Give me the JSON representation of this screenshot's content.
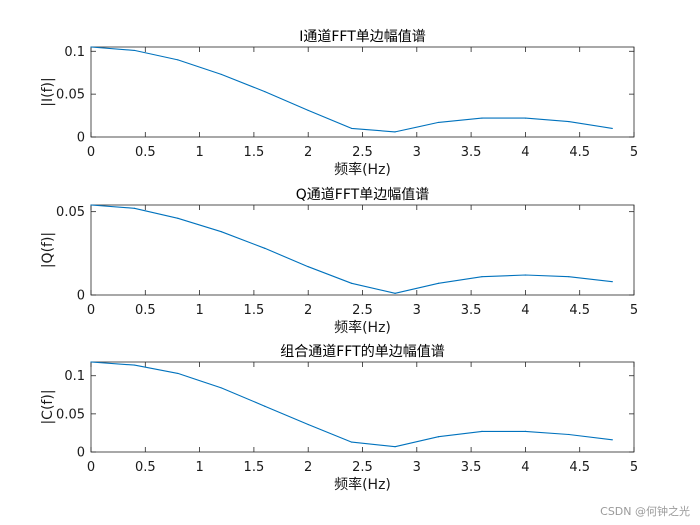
{
  "colors": {
    "line": "#0072BD",
    "axis": "#262626",
    "background": "#ffffff"
  },
  "watermark": "CSDN @何钟之光",
  "chart_data": [
    {
      "type": "line",
      "title": "I通道FFT单边幅值谱",
      "xlabel": "频率(Hz)",
      "ylabel": "|I(f)|",
      "xlim": [
        0,
        5
      ],
      "ylim": [
        0,
        0.105
      ],
      "xticks": [
        "0",
        "0.5",
        "1",
        "1.5",
        "2",
        "2.5",
        "3",
        "3.5",
        "4",
        "4.5",
        "5"
      ],
      "yticks": [
        {
          "v": 0,
          "label": "0"
        },
        {
          "v": 0.05,
          "label": "0.05"
        },
        {
          "v": 0.1,
          "label": "0.1"
        }
      ],
      "grid": false,
      "x": [
        0,
        0.4,
        0.8,
        1.2,
        1.6,
        2.0,
        2.4,
        2.8,
        3.2,
        3.6,
        4.0,
        4.4,
        4.8
      ],
      "y": [
        0.105,
        0.101,
        0.09,
        0.073,
        0.053,
        0.031,
        0.01,
        0.006,
        0.017,
        0.022,
        0.022,
        0.018,
        0.01
      ]
    },
    {
      "type": "line",
      "title": "Q通道FFT单边幅值谱",
      "xlabel": "频率(Hz)",
      "ylabel": "|Q(f)|",
      "xlim": [
        0,
        5
      ],
      "ylim": [
        0,
        0.054
      ],
      "xticks": [
        "0",
        "0.5",
        "1",
        "1.5",
        "2",
        "2.5",
        "3",
        "3.5",
        "4",
        "4.5",
        "5"
      ],
      "yticks": [
        {
          "v": 0,
          "label": "0"
        },
        {
          "v": 0.05,
          "label": "0.05"
        }
      ],
      "grid": false,
      "x": [
        0,
        0.4,
        0.8,
        1.2,
        1.6,
        2.0,
        2.4,
        2.8,
        3.2,
        3.6,
        4.0,
        4.4,
        4.8
      ],
      "y": [
        0.054,
        0.052,
        0.046,
        0.038,
        0.028,
        0.017,
        0.007,
        0.001,
        0.007,
        0.011,
        0.012,
        0.011,
        0.008
      ]
    },
    {
      "type": "line",
      "title": "组合通道FFT的单边幅值谱",
      "xlabel": "频率(Hz)",
      "ylabel": "|C(f)|",
      "xlim": [
        0,
        5
      ],
      "ylim": [
        0,
        0.118
      ],
      "xticks": [
        "0",
        "0.5",
        "1",
        "1.5",
        "2",
        "2.5",
        "3",
        "3.5",
        "4",
        "4.5",
        "5"
      ],
      "yticks": [
        {
          "v": 0,
          "label": "0"
        },
        {
          "v": 0.05,
          "label": "0.05"
        },
        {
          "v": 0.1,
          "label": "0.1"
        }
      ],
      "grid": false,
      "x": [
        0,
        0.4,
        0.8,
        1.2,
        1.6,
        2.0,
        2.4,
        2.8,
        3.2,
        3.6,
        4.0,
        4.4,
        4.8
      ],
      "y": [
        0.118,
        0.114,
        0.103,
        0.084,
        0.06,
        0.036,
        0.013,
        0.007,
        0.02,
        0.027,
        0.027,
        0.023,
        0.016
      ]
    }
  ]
}
